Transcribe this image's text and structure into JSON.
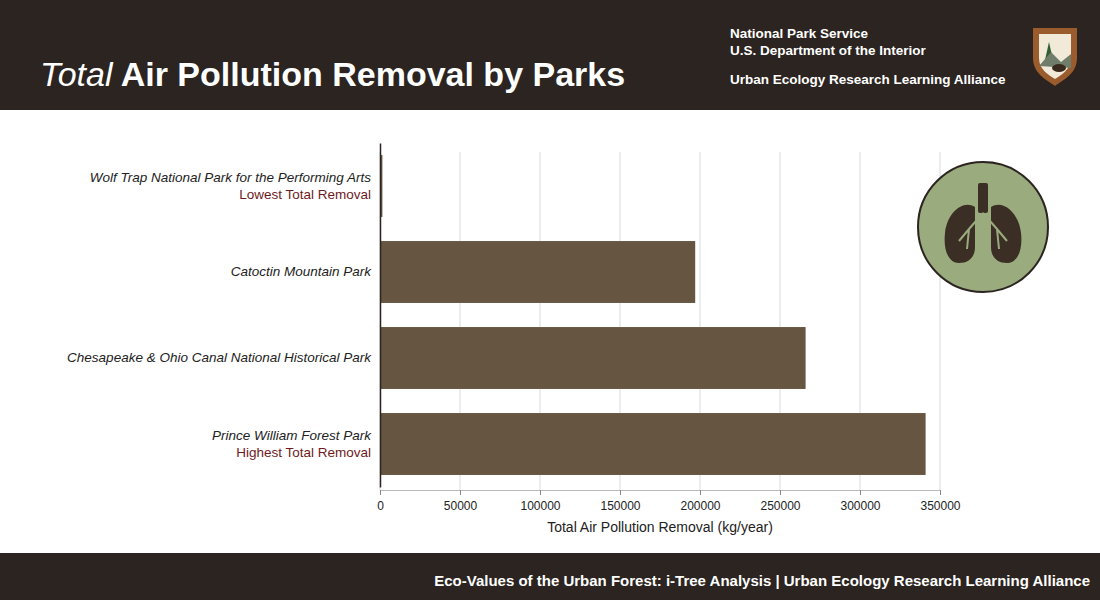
{
  "header": {
    "organization": "National Park Service",
    "department": "U.S. Department of the Interior",
    "alliance": "Urban Ecology Research Learning Alliance"
  },
  "footer": {
    "text": "Eco-Values of the Urban Forest: i-Tree Analysis | Urban Ecology Research Learning Alliance"
  },
  "chart_data": {
    "type": "bar",
    "orientation": "horizontal",
    "title": "Total Air Pollution Removal by Parks",
    "x_label": "Total Air Pollution Removal (kg/year)",
    "categories": [
      "Wolf Trap National Park for the Performing Arts",
      "Catoctin Mountain Park",
      "Chesapeake & Ohio Canal National Historical Park",
      "Prince William Forest Park"
    ],
    "values": [
      1500,
      197000,
      266000,
      341000
    ],
    "color": "#665641",
    "xlim": [
      0,
      350000
    ],
    "xticks": [
      0,
      50000,
      100000,
      150000,
      200000,
      250000,
      300000,
      350000
    ],
    "grid": true,
    "annotations": [
      {
        "category": "Wolf Trap National Park for the Performing Arts",
        "text": "Lowest Total Removal"
      },
      {
        "category": "Prince William Forest Park",
        "text": "Highest Total Removal"
      }
    ]
  }
}
